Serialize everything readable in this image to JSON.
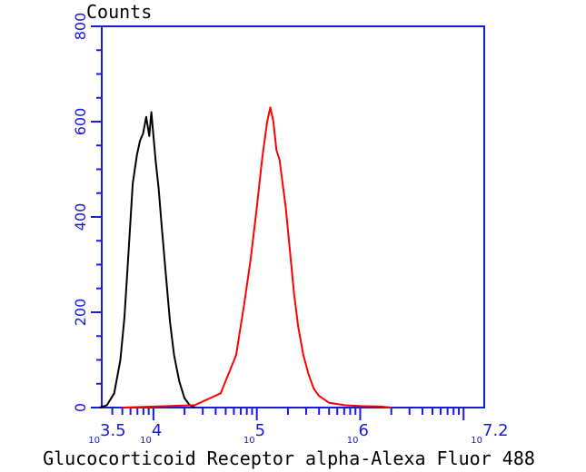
{
  "chart_data": {
    "type": "line",
    "title": "",
    "xlabel": "Glucocorticoid Receptor alpha-Alexa Fluor 488",
    "ylabel": "Counts",
    "x_scale": "log",
    "xlim": [
      3.5,
      7.2
    ],
    "ylim": [
      0,
      800
    ],
    "x_tick_labels": [
      {
        "base": "10",
        "exp": "3.5",
        "value": 3.5
      },
      {
        "base": "10",
        "exp": "4",
        "value": 4
      },
      {
        "base": "10",
        "exp": "5",
        "value": 5
      },
      {
        "base": "10",
        "exp": "6",
        "value": 6
      },
      {
        "base": "10",
        "exp": "7.2",
        "value": 7.2
      }
    ],
    "y_ticks": [
      0,
      200,
      400,
      600,
      800
    ],
    "grid": false,
    "series": [
      {
        "color": "#000000",
        "x": [
          3.48,
          3.55,
          3.62,
          3.68,
          3.72,
          3.76,
          3.8,
          3.84,
          3.87,
          3.9,
          3.93,
          3.96,
          3.98,
          4.0,
          4.02,
          4.05,
          4.08,
          4.12,
          4.16,
          4.2,
          4.25,
          4.3,
          4.35,
          4.4
        ],
        "y": [
          0,
          5,
          30,
          100,
          190,
          330,
          470,
          530,
          560,
          575,
          610,
          570,
          620,
          570,
          520,
          460,
          380,
          280,
          180,
          110,
          55,
          20,
          5,
          0
        ]
      },
      {
        "color": "#ff0000",
        "x": [
          3.7,
          4.0,
          4.4,
          4.65,
          4.8,
          4.88,
          4.94,
          5.0,
          5.05,
          5.1,
          5.13,
          5.16,
          5.19,
          5.22,
          5.25,
          5.28,
          5.32,
          5.36,
          5.4,
          5.45,
          5.5,
          5.55,
          5.6,
          5.7,
          5.85,
          6.0,
          6.2,
          6.3
        ],
        "y": [
          0,
          2,
          5,
          30,
          110,
          220,
          310,
          420,
          520,
          600,
          630,
          600,
          540,
          520,
          470,
          420,
          330,
          240,
          170,
          110,
          70,
          40,
          25,
          10,
          5,
          3,
          2,
          0
        ]
      }
    ]
  }
}
